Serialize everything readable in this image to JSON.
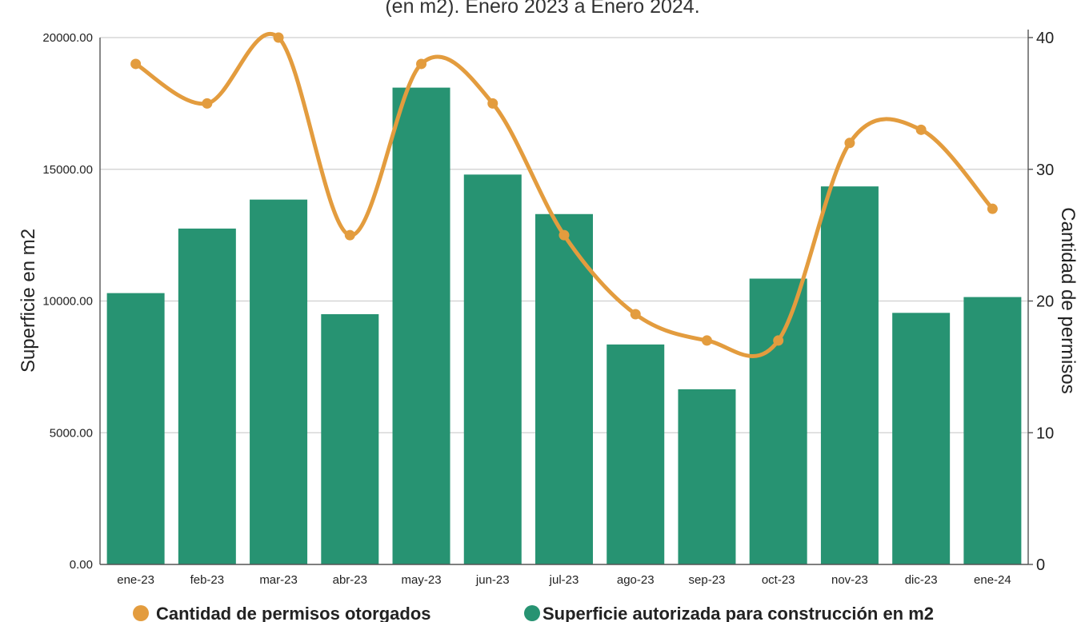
{
  "chart_data": {
    "type": "bar",
    "title": "(en m2). Enero 2023 a Enero 2024.",
    "categories": [
      "ene-23",
      "feb-23",
      "mar-23",
      "abr-23",
      "may-23",
      "jun-23",
      "jul-23",
      "ago-23",
      "sep-23",
      "oct-23",
      "nov-23",
      "dic-23",
      "ene-24"
    ],
    "series": [
      {
        "name": "Superficie autorizada para construcción en m2",
        "type": "bar",
        "axis": "left",
        "color": "#279372",
        "values": [
          10300,
          12750,
          13850,
          9500,
          18100,
          14800,
          13300,
          8350,
          6650,
          10850,
          14350,
          9550,
          10150
        ]
      },
      {
        "name": "Cantidad de permisos otorgados",
        "type": "line",
        "axis": "right",
        "color": "#E39C3E",
        "values": [
          38,
          35,
          40,
          25,
          38,
          35,
          25,
          19,
          17,
          17,
          32,
          33,
          27
        ]
      }
    ],
    "y_left": {
      "label": "Superficie en m2",
      "ylim": [
        0,
        20000
      ],
      "ticks": [
        "0.00",
        "5000.00",
        "10000.00",
        "15000.00",
        "20000.00"
      ]
    },
    "y_right": {
      "label": "Cantidad de permisos",
      "ylim": [
        0,
        40
      ],
      "ticks": [
        "0",
        "10",
        "20",
        "30",
        "40"
      ]
    },
    "grid": true,
    "legend_position": "bottom"
  }
}
